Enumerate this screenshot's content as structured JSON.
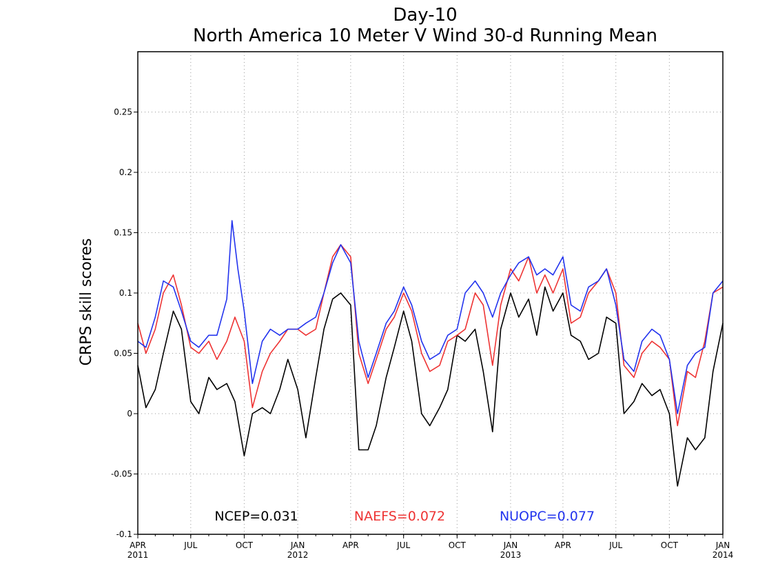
{
  "chart_data": {
    "type": "line",
    "title": "Day-10",
    "subtitle": "North America 10 Meter V Wind 30-d Running Mean",
    "ylabel": "CRPS skill scores",
    "xlabel": "",
    "ylim": [
      -0.1,
      0.3
    ],
    "xlim": [
      "2011-04-01",
      "2014-01-01"
    ],
    "y_ticks": [
      {
        "value": -0.1,
        "label": "-0.1"
      },
      {
        "value": -0.05,
        "label": "-0.05"
      },
      {
        "value": 0,
        "label": "0"
      },
      {
        "value": 0.05,
        "label": "0.05"
      },
      {
        "value": 0.1,
        "label": "0.1"
      },
      {
        "value": 0.15,
        "label": "0.15"
      },
      {
        "value": 0.2,
        "label": "0.2"
      },
      {
        "value": 0.25,
        "label": "0.25"
      }
    ],
    "x_ticks": [
      {
        "date": "2011-04-01",
        "label": "APR",
        "year": "2011"
      },
      {
        "date": "2011-07-01",
        "label": "JUL",
        "year": ""
      },
      {
        "date": "2011-10-01",
        "label": "OCT",
        "year": ""
      },
      {
        "date": "2012-01-01",
        "label": "JAN",
        "year": "2012"
      },
      {
        "date": "2012-04-01",
        "label": "APR",
        "year": ""
      },
      {
        "date": "2012-07-01",
        "label": "JUL",
        "year": ""
      },
      {
        "date": "2012-10-01",
        "label": "OCT",
        "year": ""
      },
      {
        "date": "2013-01-01",
        "label": "JAN",
        "year": "2013"
      },
      {
        "date": "2013-04-01",
        "label": "APR",
        "year": ""
      },
      {
        "date": "2013-07-01",
        "label": "JUL",
        "year": ""
      },
      {
        "date": "2013-10-01",
        "label": "OCT",
        "year": ""
      },
      {
        "date": "2014-01-01",
        "label": "JAN",
        "year": "2014"
      }
    ],
    "grid": true,
    "legend_position": "bottom",
    "series": [
      {
        "name": "NCEP",
        "mean_label": "NCEP=0.031",
        "color": "#000000",
        "dates": [
          "2011-04-01",
          "2011-04-15",
          "2011-05-01",
          "2011-05-15",
          "2011-06-01",
          "2011-06-15",
          "2011-07-01",
          "2011-07-15",
          "2011-08-01",
          "2011-08-15",
          "2011-09-01",
          "2011-09-15",
          "2011-10-01",
          "2011-10-15",
          "2011-11-01",
          "2011-11-15",
          "2011-12-01",
          "2011-12-15",
          "2012-01-01",
          "2012-01-15",
          "2012-02-01",
          "2012-02-15",
          "2012-03-01",
          "2012-03-15",
          "2012-04-01",
          "2012-04-15",
          "2012-05-01",
          "2012-05-15",
          "2012-06-01",
          "2012-06-15",
          "2012-07-01",
          "2012-07-15",
          "2012-08-01",
          "2012-08-15",
          "2012-09-01",
          "2012-09-15",
          "2012-10-01",
          "2012-10-15",
          "2012-11-01",
          "2012-11-15",
          "2012-12-01",
          "2012-12-15",
          "2013-01-01",
          "2013-01-15",
          "2013-02-01",
          "2013-02-15",
          "2013-03-01",
          "2013-03-15",
          "2013-04-01",
          "2013-04-15",
          "2013-05-01",
          "2013-05-15",
          "2013-06-01",
          "2013-06-15",
          "2013-07-01",
          "2013-07-15",
          "2013-08-01",
          "2013-08-15",
          "2013-09-01",
          "2013-09-15",
          "2013-10-01",
          "2013-10-15",
          "2013-11-01",
          "2013-11-15",
          "2013-12-01",
          "2013-12-15",
          "2014-01-01"
        ],
        "values": [
          0.04,
          0.005,
          0.02,
          0.05,
          0.085,
          0.07,
          0.01,
          0.0,
          0.03,
          0.02,
          0.025,
          0.01,
          -0.035,
          0.0,
          0.005,
          0.0,
          0.02,
          0.045,
          0.02,
          -0.02,
          0.03,
          0.07,
          0.095,
          0.1,
          0.09,
          -0.03,
          -0.03,
          -0.01,
          0.03,
          0.055,
          0.085,
          0.06,
          0.0,
          -0.01,
          0.005,
          0.02,
          0.065,
          0.06,
          0.07,
          0.035,
          -0.015,
          0.07,
          0.1,
          0.08,
          0.095,
          0.065,
          0.105,
          0.085,
          0.1,
          0.065,
          0.06,
          0.045,
          0.05,
          0.08,
          0.075,
          0.0,
          0.01,
          0.025,
          0.015,
          0.02,
          0.0,
          -0.06,
          -0.02,
          -0.03,
          -0.02,
          0.035,
          0.075
        ]
      },
      {
        "name": "NAEFS",
        "mean_label": "NAEFS=0.072",
        "color": "#ee3333",
        "dates": [
          "2011-04-01",
          "2011-04-15",
          "2011-05-01",
          "2011-05-15",
          "2011-06-01",
          "2011-06-15",
          "2011-07-01",
          "2011-07-15",
          "2011-08-01",
          "2011-08-15",
          "2011-09-01",
          "2011-09-15",
          "2011-10-01",
          "2011-10-15",
          "2011-11-01",
          "2011-11-15",
          "2011-12-01",
          "2011-12-15",
          "2012-01-01",
          "2012-01-15",
          "2012-02-01",
          "2012-02-15",
          "2012-03-01",
          "2012-03-15",
          "2012-04-01",
          "2012-04-15",
          "2012-05-01",
          "2012-05-15",
          "2012-06-01",
          "2012-06-15",
          "2012-07-01",
          "2012-07-15",
          "2012-08-01",
          "2012-08-15",
          "2012-09-01",
          "2012-09-15",
          "2012-10-01",
          "2012-10-15",
          "2012-11-01",
          "2012-11-15",
          "2012-12-01",
          "2012-12-15",
          "2013-01-01",
          "2013-01-15",
          "2013-02-01",
          "2013-02-15",
          "2013-03-01",
          "2013-03-15",
          "2013-04-01",
          "2013-04-15",
          "2013-05-01",
          "2013-05-15",
          "2013-06-01",
          "2013-06-15",
          "2013-07-01",
          "2013-07-15",
          "2013-08-01",
          "2013-08-15",
          "2013-09-01",
          "2013-09-15",
          "2013-10-01",
          "2013-10-15",
          "2013-11-01",
          "2013-11-15",
          "2013-12-01",
          "2013-12-15",
          "2014-01-01"
        ],
        "values": [
          0.075,
          0.05,
          0.07,
          0.1,
          0.115,
          0.09,
          0.055,
          0.05,
          0.06,
          0.045,
          0.06,
          0.08,
          0.06,
          0.005,
          0.035,
          0.05,
          0.06,
          0.07,
          0.07,
          0.065,
          0.07,
          0.1,
          0.13,
          0.14,
          0.13,
          0.05,
          0.025,
          0.045,
          0.07,
          0.08,
          0.1,
          0.085,
          0.05,
          0.035,
          0.04,
          0.06,
          0.065,
          0.07,
          0.1,
          0.09,
          0.04,
          0.09,
          0.12,
          0.11,
          0.13,
          0.1,
          0.115,
          0.1,
          0.12,
          0.075,
          0.08,
          0.1,
          0.11,
          0.12,
          0.1,
          0.04,
          0.03,
          0.05,
          0.06,
          0.055,
          0.045,
          -0.01,
          0.035,
          0.03,
          0.06,
          0.1,
          0.105
        ]
      },
      {
        "name": "NUOPC",
        "mean_label": "NUOPC=0.077",
        "color": "#2233ee",
        "dates": [
          "2011-04-01",
          "2011-04-15",
          "2011-05-01",
          "2011-05-15",
          "2011-06-01",
          "2011-06-15",
          "2011-07-01",
          "2011-07-15",
          "2011-08-01",
          "2011-08-15",
          "2011-09-01",
          "2011-09-10",
          "2011-09-20",
          "2011-10-01",
          "2011-10-15",
          "2011-11-01",
          "2011-11-15",
          "2011-12-01",
          "2011-12-15",
          "2012-01-01",
          "2012-01-15",
          "2012-02-01",
          "2012-02-15",
          "2012-03-01",
          "2012-03-15",
          "2012-04-01",
          "2012-04-15",
          "2012-05-01",
          "2012-05-15",
          "2012-06-01",
          "2012-06-15",
          "2012-07-01",
          "2012-07-15",
          "2012-08-01",
          "2012-08-15",
          "2012-09-01",
          "2012-09-15",
          "2012-10-01",
          "2012-10-15",
          "2012-11-01",
          "2012-11-15",
          "2012-12-01",
          "2012-12-15",
          "2013-01-01",
          "2013-01-15",
          "2013-02-01",
          "2013-02-15",
          "2013-03-01",
          "2013-03-15",
          "2013-04-01",
          "2013-04-15",
          "2013-05-01",
          "2013-05-15",
          "2013-06-01",
          "2013-06-15",
          "2013-07-01",
          "2013-07-15",
          "2013-08-01",
          "2013-08-15",
          "2013-09-01",
          "2013-09-15",
          "2013-10-01",
          "2013-10-15",
          "2013-11-01",
          "2013-11-15",
          "2013-12-01",
          "2013-12-15",
          "2014-01-01"
        ],
        "values": [
          0.06,
          0.055,
          0.08,
          0.11,
          0.105,
          0.085,
          0.06,
          0.055,
          0.065,
          0.065,
          0.095,
          0.16,
          0.12,
          0.085,
          0.025,
          0.06,
          0.07,
          0.065,
          0.07,
          0.07,
          0.075,
          0.08,
          0.1,
          0.125,
          0.14,
          0.125,
          0.06,
          0.03,
          0.05,
          0.075,
          0.085,
          0.105,
          0.09,
          0.06,
          0.045,
          0.05,
          0.065,
          0.07,
          0.1,
          0.11,
          0.1,
          0.08,
          0.1,
          0.115,
          0.125,
          0.13,
          0.115,
          0.12,
          0.115,
          0.13,
          0.09,
          0.085,
          0.105,
          0.11,
          0.12,
          0.09,
          0.045,
          0.035,
          0.06,
          0.07,
          0.065,
          0.045,
          0.0,
          0.04,
          0.05,
          0.055,
          0.1,
          0.11
        ]
      }
    ]
  }
}
